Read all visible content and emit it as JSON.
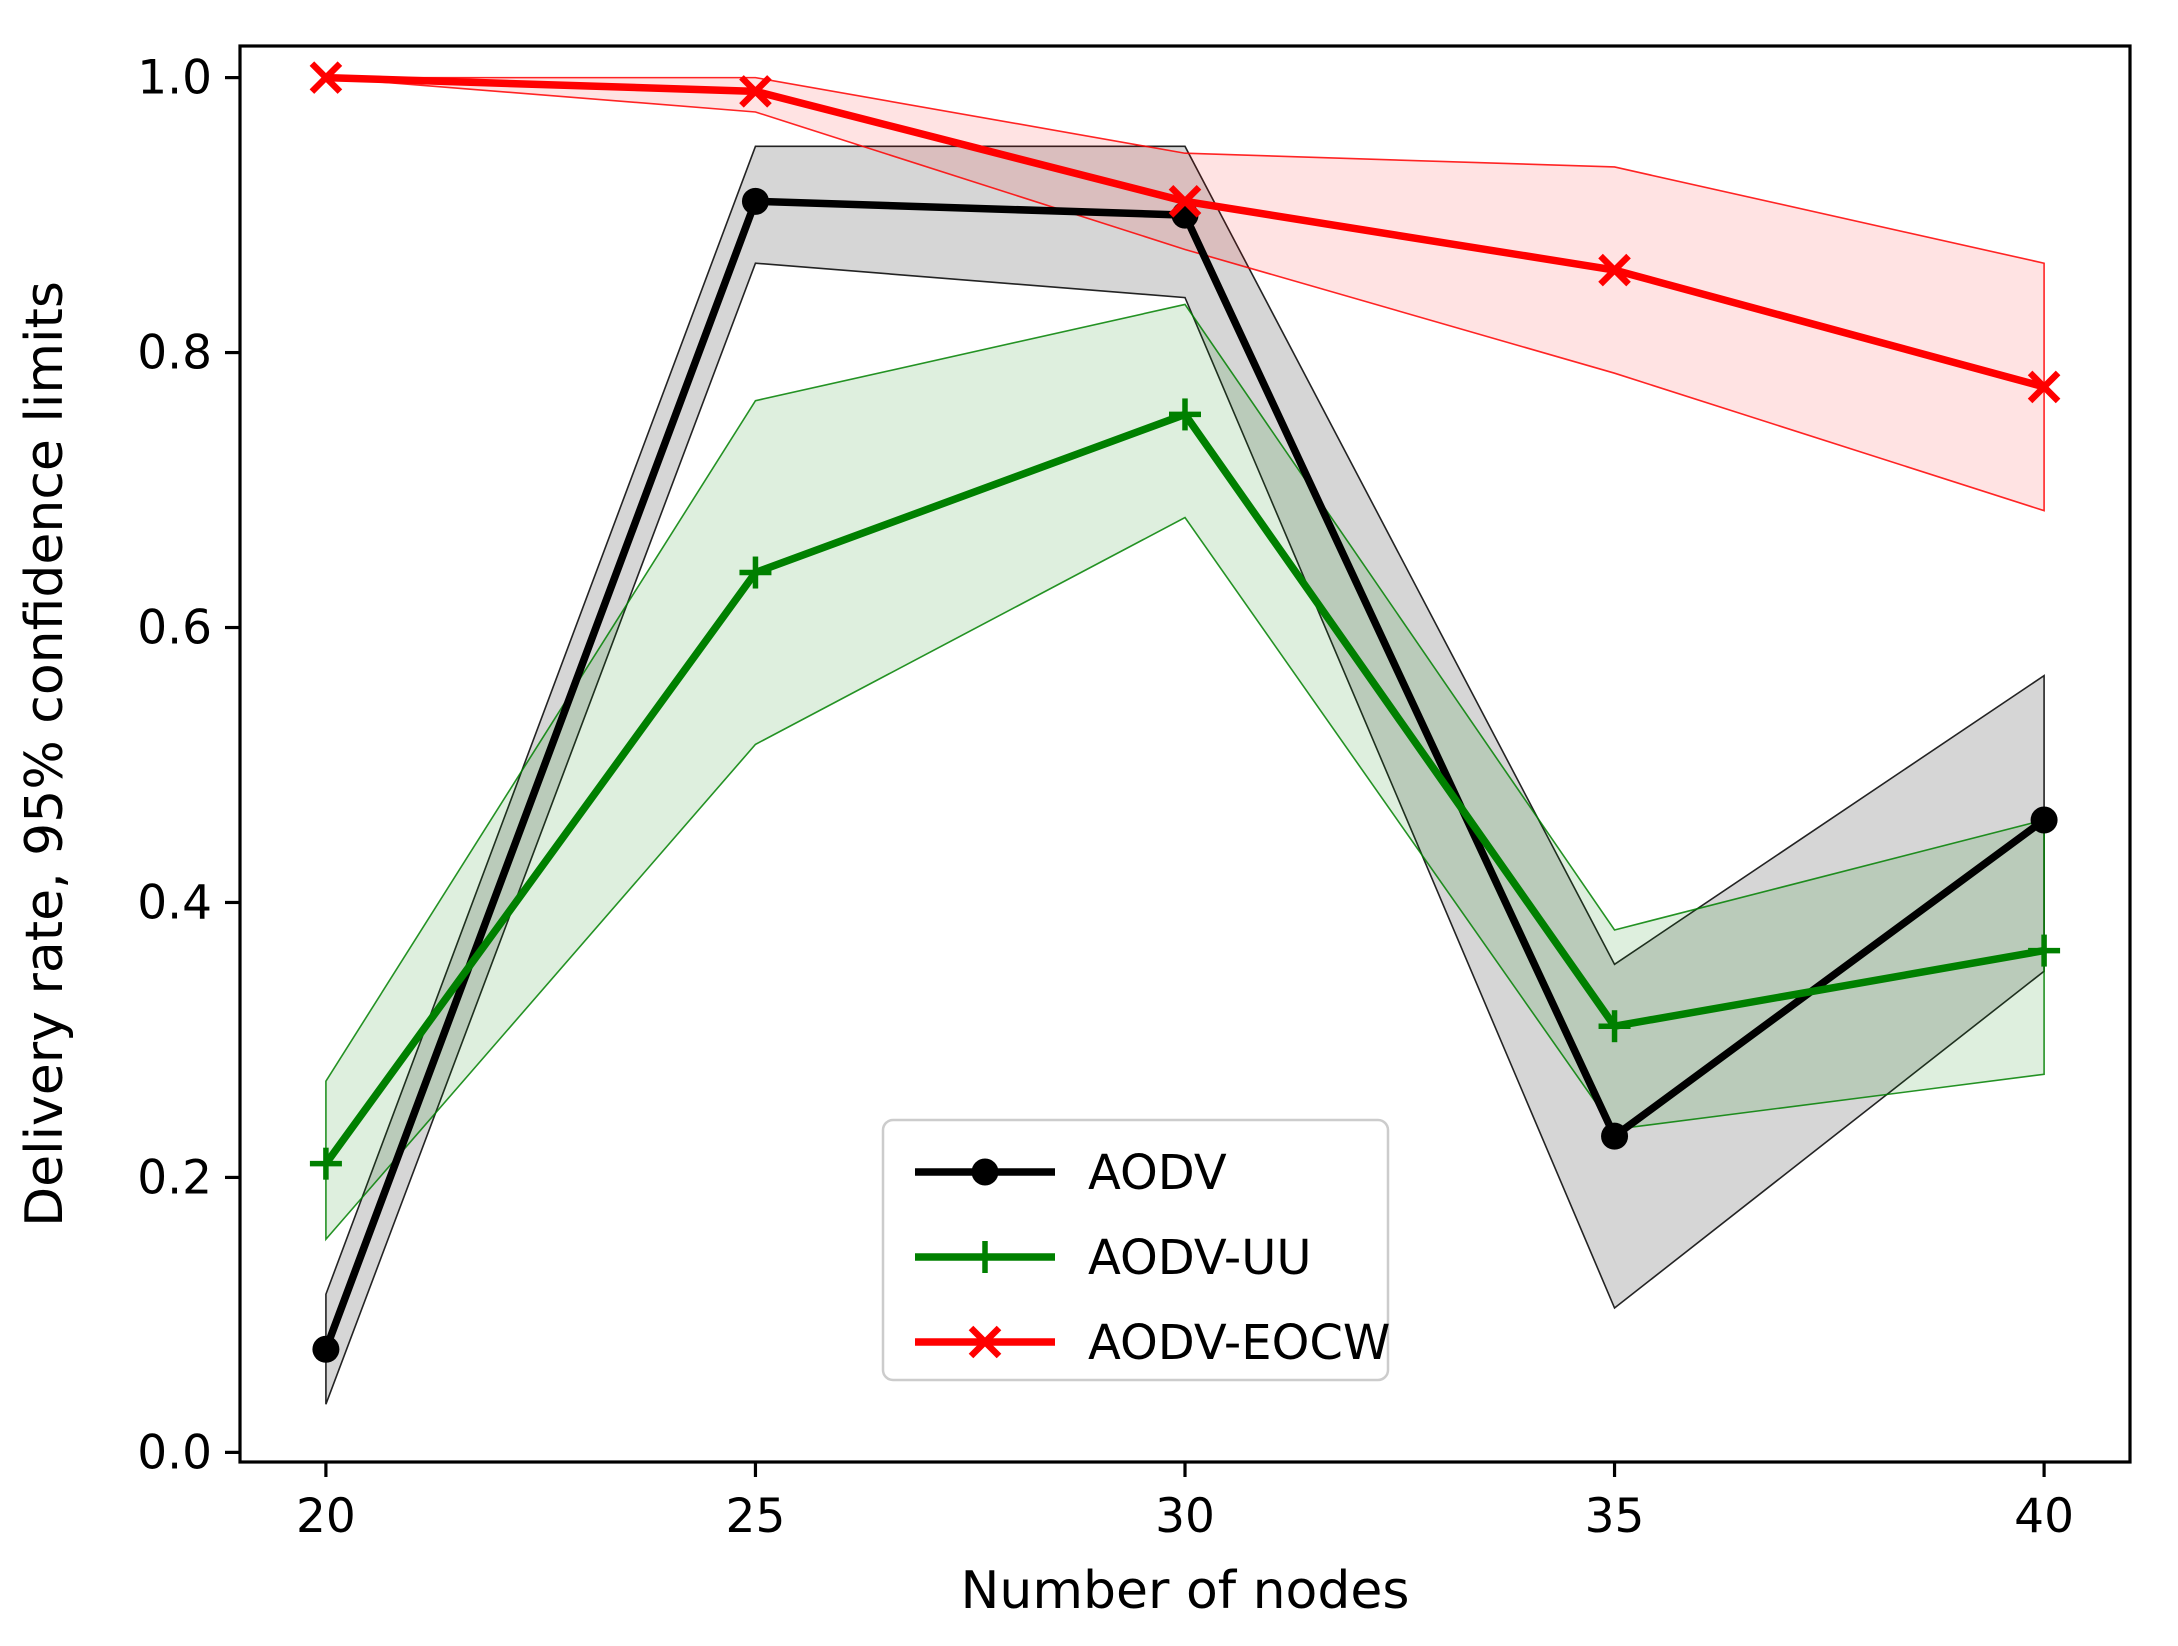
{
  "figure": {
    "background": "#ffffff"
  },
  "chart_data": {
    "type": "line",
    "title": "",
    "xlabel": "Number of nodes",
    "ylabel": "Delivery rate, 95% confidence limits",
    "x": [
      20,
      25,
      30,
      35,
      40
    ],
    "xticks": [
      20,
      25,
      30,
      35,
      40
    ],
    "yticks": [
      0.0,
      0.2,
      0.4,
      0.6,
      0.8,
      1.0
    ],
    "xlim": [
      19.0,
      41.0
    ],
    "ylim": [
      -0.007,
      1.023
    ],
    "grid": false,
    "legend": {
      "position": "lower center, inside axes",
      "border_color": "#cccccc",
      "background": "#ffffff"
    },
    "series": [
      {
        "name": "AODV",
        "color": "#000000",
        "marker": "circle",
        "band_opacity": 0.16,
        "values": [
          0.075,
          0.91,
          0.9,
          0.23,
          0.46
        ],
        "ci_lower": [
          0.035,
          0.865,
          0.84,
          0.105,
          0.35
        ],
        "ci_upper": [
          0.115,
          0.95,
          0.95,
          0.355,
          0.565
        ]
      },
      {
        "name": "AODV-UU",
        "color": "#008000",
        "marker": "plus",
        "band_opacity": 0.13,
        "values": [
          0.21,
          0.64,
          0.755,
          0.31,
          0.365
        ],
        "ci_lower": [
          0.155,
          0.515,
          0.68,
          0.235,
          0.275
        ],
        "ci_upper": [
          0.27,
          0.765,
          0.835,
          0.38,
          0.46
        ]
      },
      {
        "name": "AODV-EOCW",
        "color": "#ff0000",
        "marker": "x",
        "band_opacity": 0.11,
        "values": [
          1.0,
          0.99,
          0.91,
          0.86,
          0.775
        ],
        "ci_lower": [
          1.0,
          0.975,
          0.875,
          0.785,
          0.685
        ],
        "ci_upper": [
          1.0,
          1.0,
          0.945,
          0.935,
          0.865
        ]
      }
    ]
  }
}
